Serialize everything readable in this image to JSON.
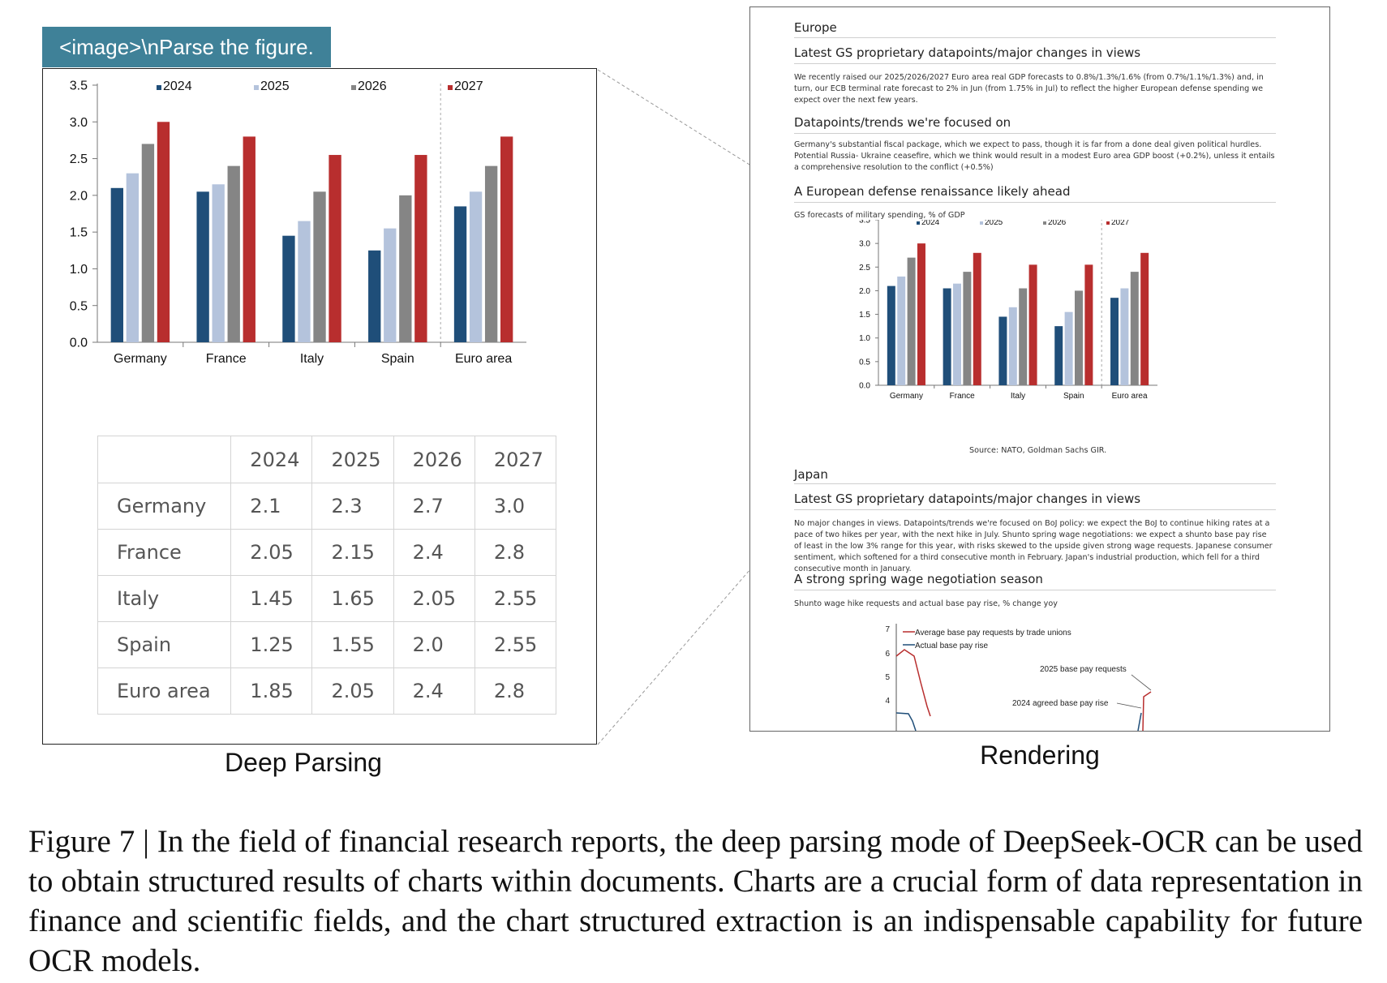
{
  "prompt_label": "<image>\\nParse the figure.",
  "left_panel_label": "Deep Parsing",
  "right_panel_label": "Rendering",
  "caption": "Figure 7 | In the field of financial research reports, the deep parsing mode of DeepSeek-OCR can be used to obtain structured results of charts within documents. Charts are a crucial form of data representation in finance and scientific fields, and the chart structured extraction is an indispensable capability for future OCR models.",
  "colors": {
    "2024": "#1f4e79",
    "2025": "#b4c3dc",
    "2026": "#858585",
    "2027": "#b82e2e",
    "prompt_bg": "#3f8198"
  },
  "chart_data": [
    {
      "type": "bar",
      "categories": [
        "Germany",
        "France",
        "Italy",
        "Spain",
        "Euro area"
      ],
      "series": [
        {
          "name": "2024",
          "values": [
            2.1,
            2.05,
            1.45,
            1.25,
            1.85
          ]
        },
        {
          "name": "2025",
          "values": [
            2.3,
            2.15,
            1.65,
            1.55,
            2.05
          ]
        },
        {
          "name": "2026",
          "values": [
            2.7,
            2.4,
            2.05,
            2.0,
            2.4
          ]
        },
        {
          "name": "2027",
          "values": [
            3.0,
            2.8,
            2.55,
            2.55,
            2.8
          ]
        }
      ],
      "yticks": [
        "0.0",
        "0.5",
        "1.0",
        "1.5",
        "2.0",
        "2.5",
        "3.0",
        "3.5"
      ],
      "ylim": [
        0,
        3.5
      ],
      "legend": "top",
      "grid": false
    },
    {
      "type": "line",
      "series": [
        {
          "name": "Average base pay requests by trade unions"
        },
        {
          "name": "Actual base pay rise"
        }
      ],
      "yticks": [
        "4",
        "5",
        "6",
        "7"
      ],
      "annotations": [
        "2025 base pay requests",
        "2024 agreed base pay rise"
      ]
    }
  ],
  "table": {
    "headers": [
      "",
      "2024",
      "2025",
      "2026",
      "2027"
    ],
    "rows": [
      [
        "Germany",
        "2.1",
        "2.3",
        "2.7",
        "3.0"
      ],
      [
        "France",
        "2.05",
        "2.15",
        "2.4",
        "2.8"
      ],
      [
        "Italy",
        "1.45",
        "1.65",
        "2.05",
        "2.55"
      ],
      [
        "Spain",
        "1.25",
        "1.55",
        "2.0",
        "2.55"
      ],
      [
        "Euro area",
        "1.85",
        "2.05",
        "2.4",
        "2.8"
      ]
    ]
  },
  "report": {
    "europe_title": "Europe",
    "europe_h1": "Latest GS proprietary datapoints/major changes in views",
    "europe_p1": "We recently raised our 2025/2026/2027 Euro area real GDP forecasts to 0.8%/1.3%/1.6% (from 0.7%/1.1%/1.3%) and, in turn, our ECB terminal rate forecast to 2% in Jun (from 1.75% in Jul) to reflect the higher European defense spending we expect over the next few years.",
    "europe_h2": "Datapoints/trends we're focused on",
    "europe_p2": "Germany's substantial fiscal package, which we expect to pass, though it is far from a done deal given political hurdles. Potential Russia- Ukraine ceasefire, which we think would result in a modest Euro area GDP boost (+0.2%), unless it entails a comprehensive resolution to the conflict (+0.5%)",
    "europe_h3": "A European defense renaissance likely ahead",
    "europe_chart_sub": "GS forecasts of military spending, % of GDP",
    "europe_source": "Source: NATO, Goldman Sachs GIR.",
    "japan_title": "Japan",
    "japan_h1": "Latest GS proprietary datapoints/major changes in views",
    "japan_p1": "No major changes in views. Datapoints/trends we're focused on BoJ policy: we expect the BoJ to continue hiking rates at a pace of two hikes per year, with the next hike in July. Shunto spring wage negotiations: we expect a shunto base pay rise of least in the low 3% range for this year, with risks skewed to the upside given strong wage requests. Japanese consumer sentiment, which softened for a third consecutive month in February. Japan's industrial production, which fell for a third consecutive month in January.",
    "japan_h2": "A strong spring wage negotiation season",
    "japan_chart_sub": "Shunto wage hike requests and actual base pay rise, % change yoy"
  }
}
